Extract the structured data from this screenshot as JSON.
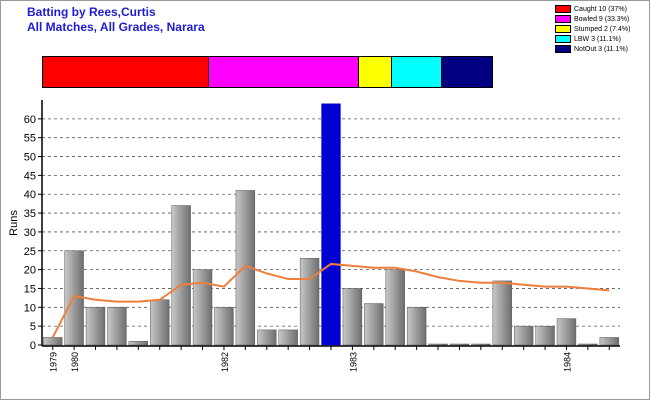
{
  "header": {
    "title": "Batting by Rees,Curtis",
    "subtitle": "All Matches, All Grades, Narara"
  },
  "colors": {
    "title": "#1c1cd0",
    "bar_light": "#c8c8c8",
    "bar_dark": "#6e6e6e",
    "highlight_bar": "#0000d0",
    "average_line": "#ee7f3c",
    "grid": "#555555"
  },
  "legend": [
    {
      "label": "Caught 10 (37%)",
      "color": "#ff0000",
      "count": 10
    },
    {
      "label": "Bowled 9 (33.3%)",
      "color": "#ff00ff",
      "count": 9
    },
    {
      "label": "Stumped 2 (7.4%)",
      "color": "#ffff00",
      "count": 2
    },
    {
      "label": "LBW 3 (11.1%)",
      "color": "#00ffff",
      "count": 3
    },
    {
      "label": "NotOut 3 (11.1%)",
      "color": "#000080",
      "count": 3
    }
  ],
  "chart_data": {
    "type": "bar",
    "title": "Batting by Rees,Curtis",
    "subtitle": "All Matches, All Grades, Narara",
    "ylabel": "Runs",
    "xlabel": "",
    "ylim": [
      0,
      65
    ],
    "yticks": [
      0,
      5,
      10,
      15,
      20,
      25,
      30,
      35,
      40,
      45,
      50,
      55,
      60
    ],
    "grid": true,
    "year_labels": [
      {
        "label": "1979",
        "index": 0
      },
      {
        "label": "1980",
        "index": 1
      },
      {
        "label": "1982",
        "index": 8
      },
      {
        "label": "1983",
        "index": 14
      },
      {
        "label": "1984",
        "index": 24
      }
    ],
    "series": [
      {
        "name": "Runs",
        "values": [
          2,
          25,
          10,
          10,
          1,
          12,
          37,
          20,
          10,
          41,
          4,
          4,
          23,
          64,
          15,
          11,
          20,
          10,
          0,
          0,
          0,
          17,
          5,
          5,
          7,
          0,
          2
        ],
        "highlight_index": 13
      },
      {
        "name": "Average",
        "values": [
          2,
          13,
          12,
          11.5,
          11.5,
          12,
          16,
          16.5,
          15.5,
          21,
          19,
          17.5,
          17.5,
          21.5,
          21,
          20.5,
          20.5,
          19.5,
          18,
          17,
          16.5,
          16.5,
          16,
          15.5,
          15.5,
          15,
          14.5
        ]
      }
    ]
  }
}
